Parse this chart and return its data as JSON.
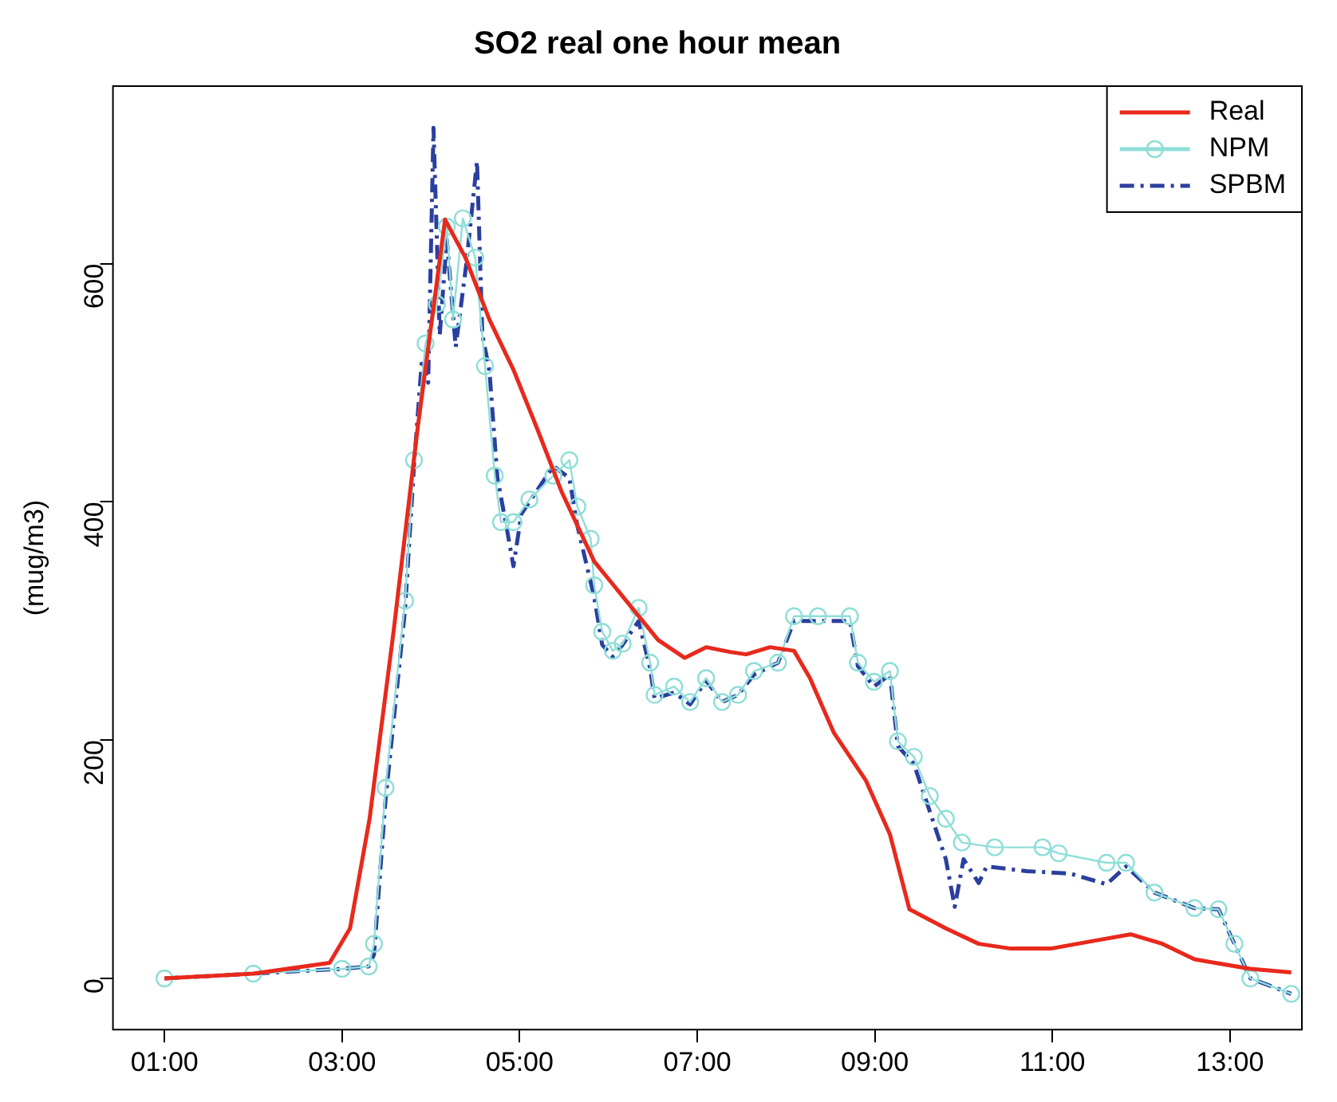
{
  "chart_data": {
    "type": "line",
    "title": "SO2 real one hour mean",
    "ylabel": "(mug/m3)",
    "xlim": [
      0.42,
      13.81
    ],
    "ylim": [
      -43,
      749
    ],
    "xticks": [
      {
        "value": 1,
        "label": "01:00"
      },
      {
        "value": 3,
        "label": "03:00"
      },
      {
        "value": 5,
        "label": "05:00"
      },
      {
        "value": 7,
        "label": "07:00"
      },
      {
        "value": 9,
        "label": "09:00"
      },
      {
        "value": 11,
        "label": "11:00"
      },
      {
        "value": 13,
        "label": "13:00"
      }
    ],
    "yticks": [
      0,
      200,
      400,
      600
    ],
    "grid": false,
    "legend": "top right",
    "series": [
      {
        "name": "Real",
        "color": "#e8291c",
        "marker": "none",
        "line_style": "solid",
        "x": [
          1,
          2,
          2.86,
          3.09,
          3.31,
          3.58,
          3.85,
          4.16,
          4.39,
          4.66,
          4.93,
          5.2,
          5.47,
          5.84,
          6.2,
          6.56,
          6.86,
          7.1,
          7.37,
          7.55,
          7.82,
          8.09,
          8.27,
          8.54,
          8.9,
          9.17,
          9.39,
          9.8,
          10.17,
          10.53,
          10.98,
          11.43,
          11.88,
          12.24,
          12.6,
          13.23,
          13.69
        ],
        "values": [
          0,
          4,
          13,
          42,
          134,
          291,
          461,
          637,
          605,
          553,
          511,
          461,
          409,
          350,
          317,
          284,
          269,
          278,
          274,
          272,
          278,
          275,
          252,
          206,
          166,
          121,
          58,
          42,
          29,
          25,
          25,
          31,
          37,
          29,
          16,
          8,
          5
        ]
      },
      {
        "name": "NPM",
        "color": "#8fded8",
        "marker": "circle",
        "line_style": "solid",
        "x": [
          1,
          2,
          3,
          3.3,
          3.36,
          3.49,
          3.71,
          3.81,
          3.94,
          4.07,
          4.18,
          4.25,
          4.36,
          4.5,
          4.61,
          4.72,
          4.79,
          4.93,
          5.11,
          5.38,
          5.56,
          5.65,
          5.8,
          5.84,
          5.93,
          6.05,
          6.16,
          6.34,
          6.47,
          6.52,
          6.74,
          6.92,
          7.1,
          7.28,
          7.46,
          7.64,
          7.91,
          8.09,
          8.36,
          8.72,
          8.81,
          8.99,
          9.17,
          9.26,
          9.44,
          9.62,
          9.8,
          9.98,
          10.35,
          10.89,
          11.07,
          11.61,
          11.83,
          12.15,
          12.6,
          12.87,
          13.05,
          13.23,
          13.69
        ],
        "values": [
          0,
          4,
          8,
          10,
          29,
          160,
          317,
          435,
          533,
          566,
          631,
          553,
          638,
          605,
          514,
          422,
          383,
          383,
          402,
          422,
          435,
          396,
          369,
          330,
          291,
          275,
          281,
          311,
          265,
          238,
          245,
          232,
          252,
          232,
          238,
          258,
          265,
          304,
          304,
          304,
          265,
          249,
          258,
          199,
          186,
          153,
          134,
          114,
          110,
          110,
          105,
          97,
          97,
          72,
          59,
          58,
          29,
          0,
          -13
        ]
      },
      {
        "name": "SPBM",
        "color": "#2b3f9e",
        "marker": "none",
        "line_style": "dashed",
        "x": [
          1,
          2,
          3,
          3.3,
          3.36,
          3.49,
          3.71,
          3.81,
          3.9,
          3.97,
          4.03,
          4.1,
          4.18,
          4.28,
          4.4,
          4.52,
          4.58,
          4.66,
          4.75,
          4.85,
          4.93,
          5.02,
          5.2,
          5.38,
          5.56,
          5.65,
          5.84,
          5.93,
          6.05,
          6.16,
          6.34,
          6.47,
          6.52,
          6.74,
          6.92,
          7.1,
          7.28,
          7.46,
          7.64,
          7.91,
          8.09,
          8.36,
          8.72,
          8.81,
          8.99,
          9.17,
          9.26,
          9.44,
          9.62,
          9.8,
          9.9,
          10,
          10.17,
          10.26,
          10.71,
          11.2,
          11.61,
          11.83,
          12.15,
          12.6,
          12.87,
          13.05,
          13.23,
          13.69
        ],
        "values": [
          0,
          4,
          8,
          10,
          20,
          150,
          310,
          430,
          520,
          500,
          714,
          540,
          620,
          530,
          600,
          686,
          540,
          510,
          420,
          380,
          346,
          390,
          410,
          430,
          420,
          380,
          320,
          280,
          270,
          280,
          300,
          260,
          235,
          240,
          230,
          250,
          232,
          238,
          255,
          265,
          300,
          300,
          300,
          262,
          245,
          255,
          195,
          180,
          140,
          100,
          60,
          100,
          80,
          94,
          90,
          88,
          79,
          94,
          72,
          59,
          58,
          29,
          0,
          -13
        ]
      }
    ]
  }
}
